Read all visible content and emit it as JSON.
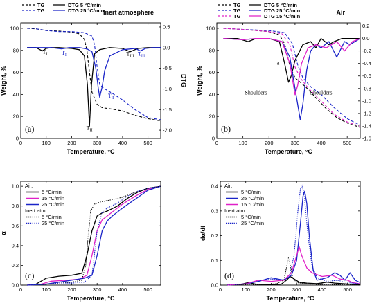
{
  "chart_data": [
    {
      "type": "line",
      "panel_label": "(a)",
      "title": "Inert atmosphere",
      "xlabel": "Temperature, °C",
      "ylabel": "Weight, %",
      "y2label": "DTG",
      "xlim": [
        0,
        550
      ],
      "ylim": [
        0,
        105
      ],
      "y2lim": [
        -2.2,
        0.6
      ],
      "xticks": [
        0,
        100,
        200,
        300,
        400,
        500
      ],
      "yticks": [
        0,
        20,
        40,
        60,
        80,
        100
      ],
      "y2ticks": [
        -2.0,
        -1.5,
        -1.0,
        -0.5,
        0.0,
        0.5
      ],
      "legend": [
        "TG",
        "DTG 5 °C/min",
        "TG",
        "DTG 25 °C/min"
      ],
      "annotations": [
        {
          "text": "T",
          "sub": "I",
          "x": 95,
          "y": 77
        },
        {
          "text": "T",
          "sub": "I",
          "x": 170,
          "y": 76
        },
        {
          "text": "T",
          "sub": "II",
          "x": 270,
          "y": 8
        },
        {
          "text": "T",
          "sub": "II",
          "x": 355,
          "y": 37
        },
        {
          "text": "T",
          "sub": "III",
          "x": 430,
          "y": 75
        },
        {
          "text": "T",
          "sub": "III",
          "x": 475,
          "y": 75
        }
      ],
      "series": [
        {
          "name": "TG",
          "axis": "y",
          "color": "#000000",
          "dash": "dash",
          "x": [
            25,
            60,
            100,
            150,
            200,
            230,
            250,
            260,
            270,
            280,
            300,
            320,
            350,
            400,
            450,
            500,
            550
          ],
          "y": [
            100,
            99.5,
            98,
            97.5,
            96.5,
            95,
            90,
            80,
            60,
            42,
            31,
            28,
            27,
            25,
            21,
            18,
            16
          ]
        },
        {
          "name": "DTG 5 °C/min",
          "axis": "y2",
          "color": "#000000",
          "dash": "solid",
          "x": [
            25,
            60,
            85,
            100,
            120,
            150,
            200,
            230,
            250,
            262,
            270,
            278,
            290,
            310,
            350,
            400,
            430,
            460,
            500,
            550
          ],
          "y": [
            0,
            0,
            -0.08,
            -0.02,
            0,
            0,
            -0.02,
            -0.05,
            -0.2,
            -0.9,
            -1.9,
            -0.9,
            -0.15,
            -0.05,
            0,
            -0.02,
            -0.1,
            -0.02,
            0,
            0
          ]
        },
        {
          "name": "TG",
          "axis": "y",
          "color": "#1a24c8",
          "dash": "dash",
          "x": [
            25,
            50,
            100,
            150,
            200,
            250,
            280,
            290,
            300,
            310,
            330,
            360,
            400,
            450,
            500,
            550
          ],
          "y": [
            100,
            100,
            98,
            97,
            97,
            96,
            93,
            85,
            65,
            49,
            45,
            41,
            35,
            26,
            19,
            17
          ]
        },
        {
          "name": "DTG 25 °C/min",
          "axis": "y2",
          "color": "#1a24c8",
          "dash": "solid",
          "x": [
            25,
            60,
            120,
            160,
            190,
            230,
            260,
            280,
            295,
            305,
            310,
            320,
            330,
            350,
            400,
            450,
            470,
            490,
            520,
            550
          ],
          "y": [
            0,
            0,
            0,
            -0.03,
            0,
            0,
            -0.03,
            -0.1,
            -0.5,
            -1.0,
            -1.2,
            -0.95,
            -0.55,
            -0.2,
            -0.05,
            -0.02,
            -0.08,
            -0.02,
            0,
            0
          ]
        }
      ]
    },
    {
      "type": "line",
      "panel_label": "(b)",
      "title": "Air",
      "xlabel": "Temperature, °C",
      "ylabel": "Weight, %",
      "y2label": "DTG",
      "xlim": [
        0,
        550
      ],
      "ylim": [
        0,
        105
      ],
      "y2lim": [
        -1.6,
        0.25
      ],
      "xticks": [
        0,
        100,
        200,
        300,
        400,
        500
      ],
      "yticks": [
        0,
        20,
        40,
        60,
        80,
        100
      ],
      "y2ticks": [
        -1.6,
        -1.4,
        -1.2,
        -1.0,
        -0.8,
        -0.6,
        -0.4,
        -0.2,
        0.0,
        0.2
      ],
      "legend": [
        "TG",
        "DTG 5 °C/min",
        "TG",
        "DTG 25 °C/min",
        "TG",
        "DTG 15 °C/min"
      ],
      "annotations": [
        {
          "text": "Shoulders",
          "x": 150,
          "y": 40
        },
        {
          "text": "Shoulders",
          "x": 400,
          "y": 40
        },
        {
          "text": "a",
          "x": 235,
          "y": 67
        }
      ],
      "series": [
        {
          "name": "TG",
          "axis": "y",
          "color": "#000000",
          "dash": "dash",
          "x": [
            25,
            100,
            200,
            240,
            260,
            280,
            300,
            340,
            380,
            420,
            460,
            500,
            550
          ],
          "y": [
            100,
            99,
            97,
            94,
            86,
            66,
            55,
            47,
            37,
            27,
            19,
            14,
            10
          ]
        },
        {
          "name": "DTG 5 °C/min",
          "axis": "y2",
          "color": "#000000",
          "dash": "solid",
          "x": [
            25,
            80,
            120,
            150,
            200,
            240,
            260,
            275,
            285,
            300,
            330,
            360,
            380,
            400,
            430,
            450,
            480,
            510,
            550
          ],
          "y": [
            0,
            0,
            -0.05,
            0,
            0,
            -0.05,
            -0.4,
            -0.7,
            -0.6,
            -0.35,
            -0.1,
            -0.05,
            -0.15,
            0,
            -0.1,
            -0.05,
            0,
            0,
            0
          ]
        },
        {
          "name": "TG",
          "axis": "y",
          "color": "#1a24c8",
          "dash": "dash",
          "x": [
            25,
            100,
            200,
            260,
            290,
            310,
            330,
            360,
            400,
            450,
            500,
            550
          ],
          "y": [
            100,
            99,
            98,
            96,
            86,
            67,
            55,
            47,
            40,
            28,
            18,
            12
          ]
        },
        {
          "name": "DTG 25 °C/min",
          "axis": "y2",
          "color": "#1a24c8",
          "dash": "solid",
          "x": [
            25,
            100,
            150,
            200,
            250,
            280,
            300,
            320,
            330,
            345,
            360,
            380,
            400,
            430,
            460,
            490,
            510,
            550
          ],
          "y": [
            0,
            -0.02,
            0,
            0,
            -0.05,
            -0.3,
            -0.8,
            -1.3,
            -1.05,
            -0.5,
            -0.2,
            -0.1,
            -0.15,
            -0.05,
            -0.3,
            -0.05,
            -0.1,
            0
          ]
        },
        {
          "name": "TG",
          "axis": "y",
          "color": "#e020c8",
          "dash": "dash",
          "x": [
            25,
            100,
            200,
            250,
            280,
            300,
            320,
            350,
            400,
            450,
            500,
            550
          ],
          "y": [
            100,
            99,
            97,
            95,
            85,
            65,
            55,
            46,
            34,
            22,
            15,
            11
          ]
        },
        {
          "name": "DTG 15 °C/min",
          "axis": "y2",
          "color": "#e020c8",
          "dash": "solid",
          "x": [
            25,
            100,
            150,
            200,
            250,
            280,
            300,
            310,
            325,
            350,
            380,
            420,
            460,
            490,
            520,
            550
          ],
          "y": [
            0,
            -0.02,
            0,
            0,
            -0.05,
            -0.4,
            -0.9,
            -0.75,
            -0.4,
            -0.15,
            -0.1,
            -0.15,
            -0.05,
            -0.2,
            -0.05,
            0
          ]
        }
      ]
    },
    {
      "type": "line",
      "panel_label": "(c)",
      "xlabel": "Temperature, °C",
      "ylabel": "α",
      "xlim": [
        0,
        550
      ],
      "ylim": [
        0,
        1.05
      ],
      "xticks": [
        0,
        100,
        200,
        300,
        400,
        500
      ],
      "yticks": [
        0.0,
        0.2,
        0.4,
        0.6,
        0.8,
        1.0
      ],
      "legend_title": "Air:",
      "legend_title2": "Inert atm.:",
      "legend_entries": [
        "5 °C/min",
        "15 °C/min",
        "25 °C/min",
        "5 °C/min",
        "25 °C/min"
      ],
      "series": [
        {
          "name": "5 °C/min",
          "color": "#000000",
          "dash": "solid",
          "x": [
            25,
            60,
            100,
            150,
            200,
            240,
            260,
            280,
            300,
            320,
            340,
            380,
            420,
            460,
            500,
            550
          ],
          "y": [
            0,
            0.01,
            0.07,
            0.09,
            0.1,
            0.12,
            0.3,
            0.55,
            0.7,
            0.73,
            0.75,
            0.8,
            0.88,
            0.94,
            0.98,
            1.0
          ]
        },
        {
          "name": "15 °C/min",
          "color": "#e020c8",
          "dash": "solid",
          "x": [
            25,
            80,
            120,
            180,
            230,
            260,
            280,
            300,
            320,
            350,
            400,
            450,
            500,
            550
          ],
          "y": [
            0,
            0.01,
            0.04,
            0.05,
            0.06,
            0.1,
            0.3,
            0.55,
            0.66,
            0.72,
            0.82,
            0.9,
            0.97,
            1.0
          ]
        },
        {
          "name": "25 °C/min",
          "color": "#1a24c8",
          "dash": "solid",
          "x": [
            25,
            100,
            150,
            200,
            250,
            280,
            300,
            320,
            340,
            360,
            400,
            450,
            500,
            550
          ],
          "y": [
            0,
            0.01,
            0.03,
            0.05,
            0.07,
            0.1,
            0.3,
            0.55,
            0.65,
            0.7,
            0.78,
            0.87,
            0.96,
            1.0
          ]
        },
        {
          "name": "5 °C/min",
          "color": "#000000",
          "dash": "dot",
          "x": [
            25,
            100,
            150,
            200,
            240,
            255,
            265,
            275,
            290,
            310,
            350,
            400,
            450,
            500,
            550
          ],
          "y": [
            0,
            0.01,
            0.02,
            0.03,
            0.05,
            0.2,
            0.5,
            0.75,
            0.82,
            0.84,
            0.86,
            0.89,
            0.94,
            0.98,
            1.0
          ]
        },
        {
          "name": "25 °C/min",
          "color": "#1a24c8",
          "dash": "dot",
          "x": [
            25,
            100,
            150,
            200,
            250,
            280,
            300,
            320,
            340,
            380,
            420,
            460,
            500,
            550
          ],
          "y": [
            0,
            0.01,
            0.02,
            0.02,
            0.03,
            0.1,
            0.55,
            0.74,
            0.78,
            0.83,
            0.9,
            0.95,
            0.98,
            1.0
          ]
        }
      ]
    },
    {
      "type": "line",
      "panel_label": "(d)",
      "xlabel": "Temperature, °C",
      "ylabel": "dα/dt",
      "xlim": [
        0,
        550
      ],
      "ylim": [
        0,
        0.42
      ],
      "xticks": [
        0,
        100,
        200,
        300,
        400,
        500
      ],
      "yticks": [
        0.0,
        0.1,
        0.2,
        0.3,
        0.4
      ],
      "legend_title": "Air:",
      "legend_title2": "Inert atm.:",
      "legend_entries": [
        "5 °C/min",
        "25 °C/min",
        "15 °C/min",
        "5 °C/min",
        "25 °C/min"
      ],
      "series": [
        {
          "name": "5 °C/min",
          "color": "#000000",
          "dash": "solid",
          "x": [
            25,
            80,
            110,
            140,
            200,
            240,
            260,
            275,
            290,
            310,
            340,
            380,
            420,
            450,
            480,
            520,
            550
          ],
          "y": [
            0,
            0.003,
            0.01,
            0.004,
            0.002,
            0.004,
            0.02,
            0.035,
            0.025,
            0.012,
            0.008,
            0.006,
            0.012,
            0.008,
            0.006,
            0.003,
            0.002
          ]
        },
        {
          "name": "25 °C/min",
          "color": "#1a24c8",
          "dash": "solid",
          "x": [
            25,
            100,
            150,
            200,
            250,
            280,
            300,
            315,
            325,
            332,
            340,
            350,
            365,
            380,
            420,
            450,
            470,
            490,
            510,
            530,
            550
          ],
          "y": [
            0,
            0.005,
            0.015,
            0.03,
            0.02,
            0.04,
            0.1,
            0.25,
            0.36,
            0.38,
            0.33,
            0.2,
            0.06,
            0.02,
            0.03,
            0.05,
            0.04,
            0.02,
            0.05,
            0.02,
            0.01
          ]
        },
        {
          "name": "15 °C/min",
          "color": "#e020c8",
          "dash": "solid",
          "x": [
            25,
            100,
            150,
            200,
            250,
            280,
            300,
            310,
            320,
            340,
            360,
            400,
            440,
            470,
            500,
            520,
            550
          ],
          "y": [
            0,
            0.005,
            0.02,
            0.015,
            0.02,
            0.05,
            0.12,
            0.155,
            0.12,
            0.07,
            0.05,
            0.035,
            0.04,
            0.025,
            0.02,
            0.01,
            0.005
          ]
        },
        {
          "name": "5 °C/min",
          "color": "#000000",
          "dash": "dot",
          "x": [
            25,
            150,
            220,
            250,
            262,
            268,
            275,
            285,
            300,
            350,
            400,
            550
          ],
          "y": [
            0,
            0.002,
            0.005,
            0.02,
            0.08,
            0.11,
            0.08,
            0.03,
            0.01,
            0.004,
            0.002,
            0.001
          ]
        },
        {
          "name": "25 °C/min",
          "color": "#1a24c8",
          "dash": "dot",
          "x": [
            25,
            100,
            170,
            200,
            240,
            270,
            290,
            305,
            315,
            322,
            330,
            345,
            360,
            380,
            420,
            460,
            500,
            550
          ],
          "y": [
            0,
            0.005,
            0.02,
            0.025,
            0.02,
            0.03,
            0.12,
            0.3,
            0.39,
            0.405,
            0.36,
            0.2,
            0.08,
            0.03,
            0.015,
            0.02,
            0.01,
            0.005
          ]
        }
      ]
    }
  ]
}
